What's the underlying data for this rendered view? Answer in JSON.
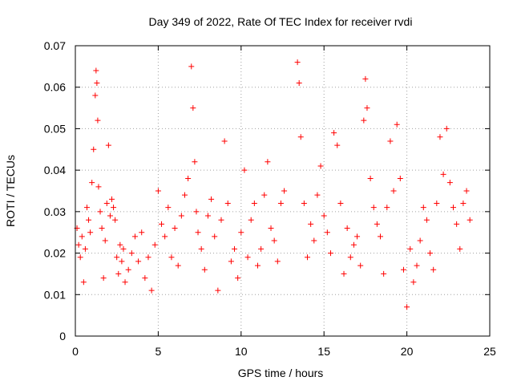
{
  "chart_data": {
    "type": "scatter",
    "title": "Day 349 of 2022, Rate Of TEC Index for receiver rvdi",
    "xlabel": "GPS time / hours",
    "ylabel": "ROTI / TECUs",
    "xlim": [
      0,
      25
    ],
    "ylim": [
      0,
      0.07
    ],
    "xticks": [
      "0",
      "5",
      "10",
      "15",
      "20",
      "25"
    ],
    "yticks": [
      "0",
      "0.01",
      "0.02",
      "0.03",
      "0.04",
      "0.05",
      "0.06",
      "0.07"
    ],
    "grid": true,
    "legend": "none",
    "marker": "+",
    "color": "#ff0000",
    "series": [
      {
        "x": [
          0.1,
          0.2,
          0.3,
          0.4,
          0.5,
          0.6,
          0.7,
          0.8,
          0.9,
          1.0,
          1.1,
          1.2,
          1.25,
          1.3,
          1.35,
          1.4,
          1.5,
          1.6,
          1.7,
          1.8,
          1.9,
          2.0,
          2.1,
          2.2,
          2.3,
          2.4,
          2.5,
          2.6,
          2.7,
          2.8,
          2.9,
          3.0,
          3.2,
          3.4,
          3.6,
          3.8,
          4.0,
          4.2,
          4.4,
          4.6,
          4.8,
          5.0,
          5.2,
          5.4,
          5.6,
          5.8,
          6.0,
          6.2,
          6.4,
          6.6,
          6.8,
          7.0,
          7.1,
          7.2,
          7.3,
          7.4,
          7.6,
          7.8,
          8.0,
          8.2,
          8.4,
          8.6,
          8.8,
          9.0,
          9.2,
          9.4,
          9.6,
          9.8,
          10.0,
          10.2,
          10.4,
          10.6,
          10.8,
          11.0,
          11.2,
          11.4,
          11.6,
          11.8,
          12.0,
          12.2,
          12.4,
          12.6,
          13.4,
          13.5,
          13.6,
          13.8,
          14.0,
          14.2,
          14.4,
          14.6,
          14.8,
          15.0,
          15.2,
          15.4,
          15.6,
          15.8,
          16.0,
          16.2,
          16.4,
          16.6,
          16.8,
          17.0,
          17.2,
          17.4,
          17.5,
          17.6,
          17.8,
          18.0,
          18.2,
          18.4,
          18.6,
          18.8,
          19.0,
          19.2,
          19.4,
          19.6,
          19.8,
          20.0,
          20.2,
          20.4,
          20.6,
          20.8,
          21.0,
          21.2,
          21.4,
          21.6,
          21.8,
          22.0,
          22.2,
          22.4,
          22.6,
          22.8,
          23.0,
          23.2,
          23.4,
          23.6,
          23.8
        ],
        "y": [
          0.026,
          0.022,
          0.019,
          0.024,
          0.013,
          0.021,
          0.031,
          0.028,
          0.025,
          0.037,
          0.045,
          0.058,
          0.064,
          0.061,
          0.052,
          0.036,
          0.03,
          0.026,
          0.014,
          0.023,
          0.032,
          0.046,
          0.029,
          0.033,
          0.031,
          0.028,
          0.019,
          0.015,
          0.022,
          0.018,
          0.021,
          0.013,
          0.016,
          0.02,
          0.024,
          0.018,
          0.025,
          0.014,
          0.019,
          0.011,
          0.022,
          0.035,
          0.027,
          0.024,
          0.031,
          0.019,
          0.026,
          0.017,
          0.029,
          0.034,
          0.038,
          0.065,
          0.055,
          0.042,
          0.03,
          0.025,
          0.021,
          0.016,
          0.029,
          0.033,
          0.024,
          0.011,
          0.028,
          0.047,
          0.032,
          0.018,
          0.021,
          0.014,
          0.025,
          0.04,
          0.019,
          0.028,
          0.032,
          0.017,
          0.021,
          0.034,
          0.042,
          0.026,
          0.023,
          0.018,
          0.032,
          0.035,
          0.066,
          0.061,
          0.048,
          0.032,
          0.019,
          0.027,
          0.023,
          0.034,
          0.041,
          0.029,
          0.025,
          0.02,
          0.049,
          0.046,
          0.032,
          0.015,
          0.026,
          0.019,
          0.022,
          0.024,
          0.017,
          0.052,
          0.062,
          0.055,
          0.038,
          0.031,
          0.027,
          0.024,
          0.015,
          0.031,
          0.047,
          0.035,
          0.051,
          0.038,
          0.016,
          0.007,
          0.021,
          0.013,
          0.017,
          0.023,
          0.031,
          0.028,
          0.02,
          0.016,
          0.032,
          0.048,
          0.039,
          0.05,
          0.037,
          0.031,
          0.027,
          0.021,
          0.032,
          0.035,
          0.028
        ]
      }
    ]
  }
}
